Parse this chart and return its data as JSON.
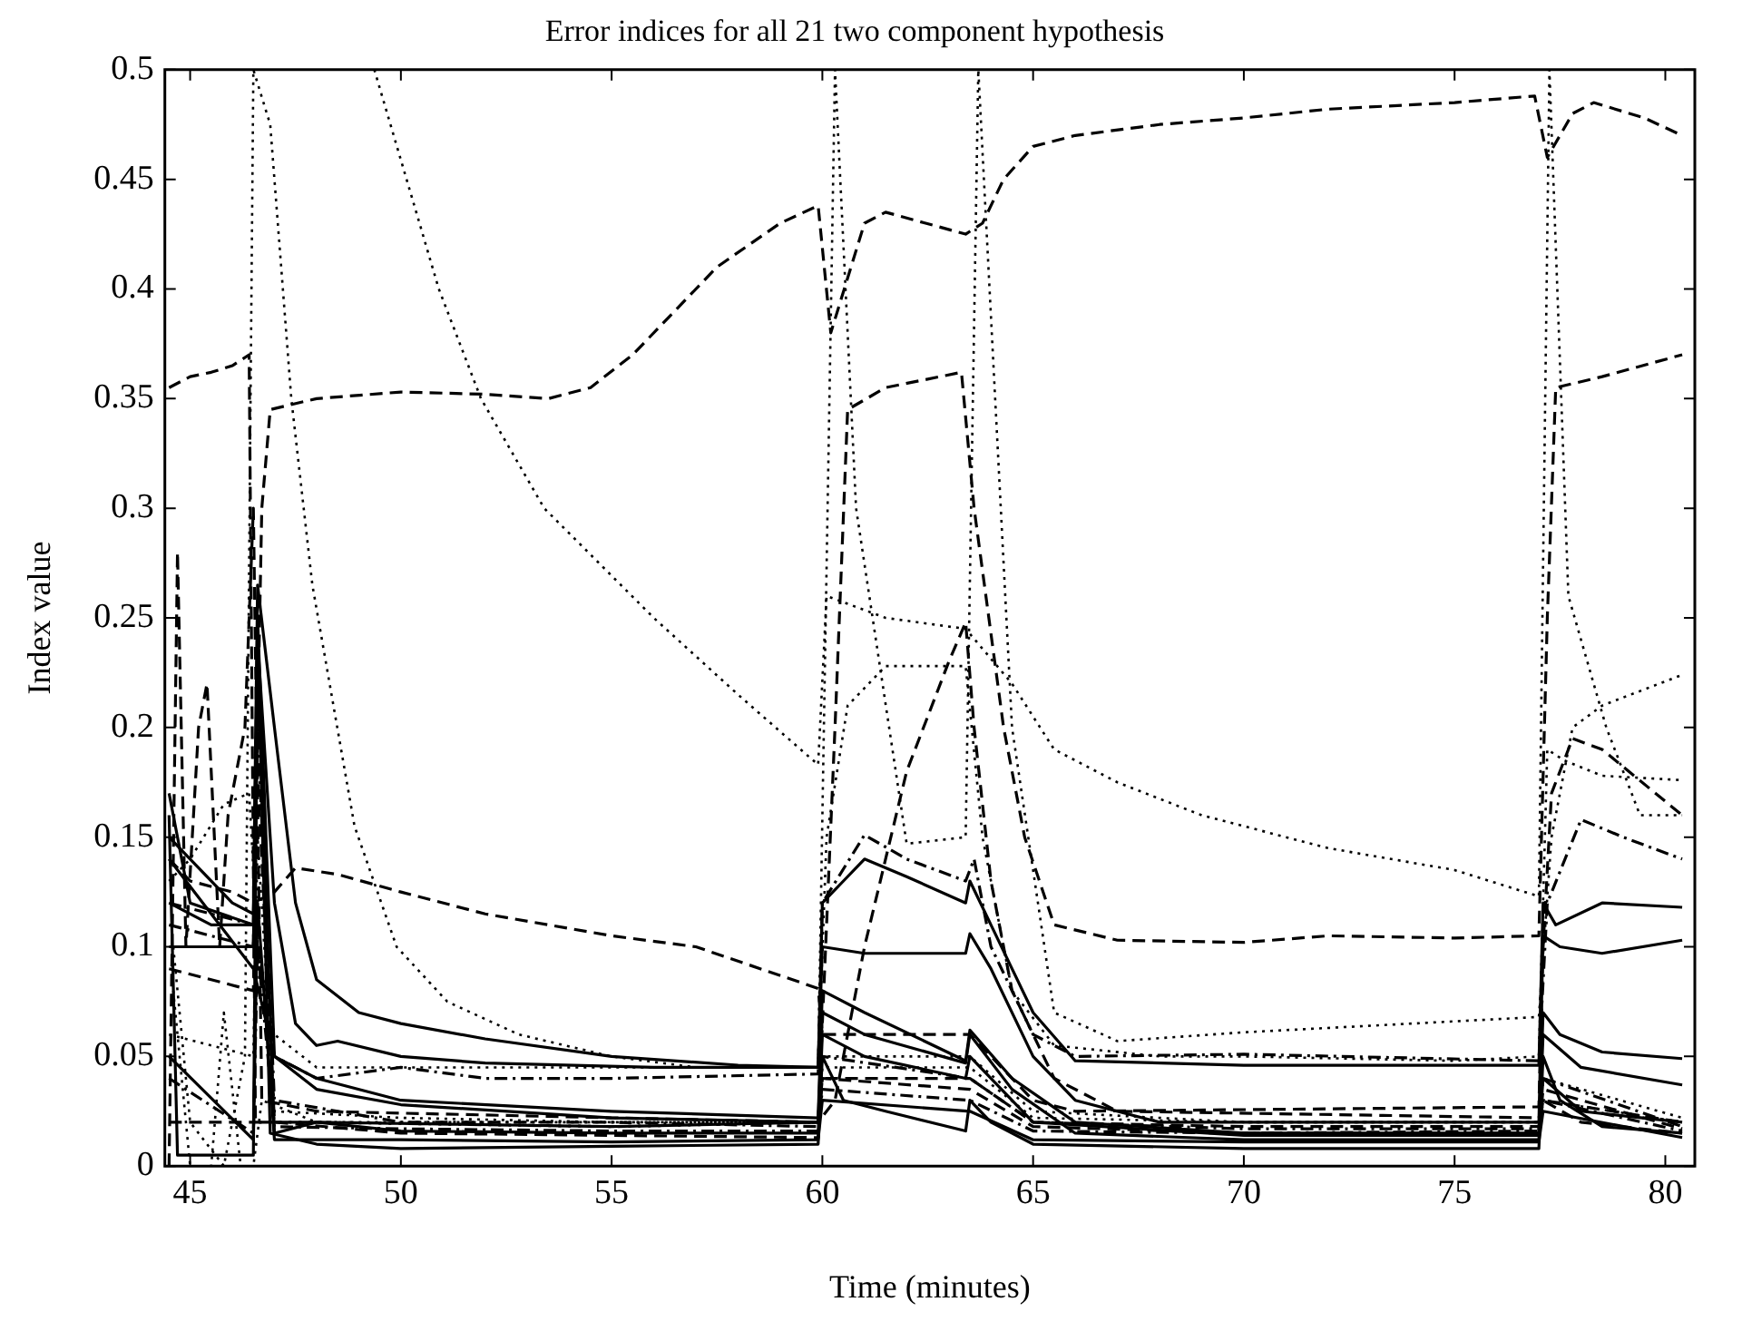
{
  "chart_data": {
    "type": "line",
    "title": "Error indices for all 21 two component hypothesis",
    "xlabel": "Time (minutes)",
    "ylabel": "Index value",
    "xlim": [
      44.4,
      80.7
    ],
    "ylim": [
      0,
      0.5
    ],
    "xticks": [
      45,
      50,
      55,
      60,
      65,
      70,
      75,
      80
    ],
    "yticks": [
      0,
      0.05,
      0.1,
      0.15,
      0.2,
      0.25,
      0.3,
      0.35,
      0.4,
      0.45,
      0.5
    ],
    "grid": false,
    "legend": false,
    "marker": "none",
    "series": [
      {
        "color": "#000000",
        "line_style": "dashed",
        "x": [
          46.5,
          46.7,
          46.9,
          48,
          50,
          52,
          53.5,
          54.5,
          55.5,
          56.5,
          57.5,
          59,
          59.9,
          60.2,
          61,
          61.5,
          63.4,
          63.8,
          64.3,
          65,
          66,
          68,
          70,
          72,
          75,
          76.9,
          77.2,
          77.8,
          78.3,
          79.5,
          80.4
        ],
        "values": [
          0.1,
          0.3,
          0.345,
          0.35,
          0.353,
          0.352,
          0.35,
          0.355,
          0.37,
          0.39,
          0.41,
          0.43,
          0.438,
          0.38,
          0.43,
          0.435,
          0.425,
          0.43,
          0.45,
          0.465,
          0.47,
          0.475,
          0.478,
          0.482,
          0.485,
          0.488,
          0.46,
          0.48,
          0.485,
          0.478,
          0.47
        ]
      },
      {
        "color": "#000000",
        "line_style": "dashed",
        "x": [
          44.5,
          45,
          45.5,
          46,
          46.4,
          46.55,
          48,
          55,
          59.9,
          60.3,
          60.6,
          61.5,
          63.3,
          63.6,
          64.3,
          64.8,
          65.5,
          67,
          70,
          72,
          75,
          77,
          77.2,
          77.4,
          78.5,
          80.4
        ],
        "values": [
          0.355,
          0.36,
          0.362,
          0.365,
          0.37,
          0.02,
          0.02,
          0.018,
          0.02,
          0.2,
          0.345,
          0.355,
          0.362,
          0.3,
          0.2,
          0.15,
          0.11,
          0.103,
          0.102,
          0.105,
          0.104,
          0.105,
          0.25,
          0.355,
          0.36,
          0.37
        ]
      },
      {
        "color": "#000000",
        "line_style": "dotted",
        "x": [
          49.37,
          50.9,
          51.9,
          53.4,
          56,
          58,
          59.9,
          60.1,
          61.5,
          63.4,
          64.5,
          65.5,
          67,
          69,
          70,
          72,
          75,
          77,
          77.25,
          77.7,
          78.6,
          79.4,
          80.4
        ],
        "values": [
          0.5,
          0.4,
          0.35,
          0.3,
          0.25,
          0.215,
          0.183,
          0.26,
          0.25,
          0.245,
          0.22,
          0.19,
          0.175,
          0.16,
          0.155,
          0.145,
          0.135,
          0.123,
          0.5,
          0.26,
          0.2,
          0.16,
          0.16
        ]
      },
      {
        "color": "#000000",
        "line_style": "dotted",
        "x": [
          44.6,
          45,
          45.8,
          46.3,
          46.5,
          46.9,
          47.4,
          47.9,
          48.9,
          49.9,
          51.1,
          52.8,
          55,
          57,
          59.9,
          60.3,
          60.8,
          62,
          63.4,
          63.7,
          64.5,
          65.5,
          67,
          70,
          75,
          77,
          77.3,
          77.8,
          78.5,
          80.4
        ],
        "values": [
          0.1,
          0.02,
          0,
          0.05,
          0.5,
          0.475,
          0.35,
          0.265,
          0.155,
          0.1,
          0.075,
          0.06,
          0.05,
          0.045,
          0.045,
          0.5,
          0.3,
          0.147,
          0.15,
          0.5,
          0.2,
          0.07,
          0.057,
          0.061,
          0.066,
          0.068,
          0.15,
          0.2,
          0.21,
          0.224
        ]
      },
      {
        "color": "#000000",
        "line_style": "dotted",
        "x": [
          44.5,
          45,
          45.8,
          46.4,
          46.6,
          47,
          48,
          50,
          55,
          59.9,
          60.1,
          60.6,
          61.5,
          63.4,
          63.8,
          64.5,
          65.5,
          68,
          70,
          75,
          77,
          77.2,
          77.6,
          78.5,
          80.4
        ],
        "values": [
          0.13,
          0.14,
          0.165,
          0.17,
          0.1,
          0.06,
          0.045,
          0.045,
          0.045,
          0.045,
          0.15,
          0.21,
          0.228,
          0.228,
          0.15,
          0.08,
          0.055,
          0.05,
          0.05,
          0.048,
          0.05,
          0.19,
          0.185,
          0.178,
          0.176
        ]
      },
      {
        "color": "#000000",
        "line_style": "solid",
        "x": [
          44.5,
          45,
          46,
          46.5,
          46.6,
          47,
          47.5,
          48,
          49,
          50,
          52,
          55,
          58,
          59.9,
          60,
          60.5,
          61,
          62,
          63.4,
          63.5,
          64,
          65,
          66,
          70,
          77,
          77.1,
          77.4,
          78.5,
          80.4
        ],
        "values": [
          0.15,
          0.14,
          0.12,
          0.115,
          0.265,
          0.2,
          0.12,
          0.085,
          0.07,
          0.065,
          0.058,
          0.05,
          0.046,
          0.045,
          0.12,
          0.13,
          0.14,
          0.132,
          0.12,
          0.13,
          0.11,
          0.07,
          0.048,
          0.046,
          0.046,
          0.12,
          0.11,
          0.12,
          0.118
        ]
      },
      {
        "color": "#000000",
        "line_style": "solid",
        "x": [
          44.5,
          45.5,
          46.5,
          46.6,
          47,
          47.5,
          48,
          48.5,
          50,
          52,
          56,
          59.9,
          60,
          61,
          63.4,
          63.5,
          64,
          65,
          66,
          68,
          77,
          77.1,
          77.5,
          78.5,
          80.4
        ],
        "values": [
          0.12,
          0.11,
          0.11,
          0.24,
          0.12,
          0.065,
          0.055,
          0.057,
          0.05,
          0.047,
          0.045,
          0.045,
          0.1,
          0.097,
          0.097,
          0.106,
          0.09,
          0.05,
          0.03,
          0.02,
          0.02,
          0.105,
          0.1,
          0.097,
          0.103
        ]
      },
      {
        "color": "#000000",
        "line_style": "solid",
        "x": [
          44.5,
          46.5,
          47,
          48,
          50,
          55,
          59.9,
          60,
          61,
          63.4,
          63.5,
          64.5,
          66,
          70,
          77,
          77.1,
          77.5,
          78.5,
          80.4
        ],
        "values": [
          0.14,
          0.09,
          0.05,
          0.04,
          0.03,
          0.025,
          0.022,
          0.08,
          0.07,
          0.048,
          0.062,
          0.04,
          0.02,
          0.015,
          0.015,
          0.07,
          0.06,
          0.052,
          0.049
        ]
      },
      {
        "color": "#000000",
        "line_style": "solid",
        "x": [
          44.5,
          45,
          46.5,
          46.6,
          47,
          48,
          50,
          55,
          59.9,
          60,
          61,
          63.4,
          63.5,
          64.5,
          66,
          70,
          77,
          77.1,
          78,
          80.4
        ],
        "values": [
          0.17,
          0.12,
          0.11,
          0.25,
          0.05,
          0.035,
          0.028,
          0.022,
          0.02,
          0.07,
          0.06,
          0.047,
          0.06,
          0.035,
          0.015,
          0.012,
          0.012,
          0.06,
          0.045,
          0.037
        ]
      },
      {
        "color": "#000000",
        "line_style": "solid",
        "x": [
          44.5,
          44.7,
          46.5,
          46.6,
          46.9,
          48,
          50,
          55,
          59.9,
          60,
          60.5,
          61.5,
          63.4,
          63.5,
          64,
          65,
          70,
          77,
          77.1,
          77.5,
          78.5,
          80.4
        ],
        "values": [
          0.16,
          0.005,
          0.005,
          0.24,
          0.015,
          0.01,
          0.008,
          0.009,
          0.01,
          0.05,
          0.03,
          0.025,
          0.016,
          0.03,
          0.02,
          0.01,
          0.008,
          0.008,
          0.05,
          0.03,
          0.018,
          0.015
        ]
      },
      {
        "color": "#000000",
        "line_style": "solid",
        "x": [
          44.5,
          46.5,
          46.6,
          47,
          48,
          50,
          55,
          59.9,
          60,
          61,
          63.4,
          63.5,
          65,
          70,
          77,
          77.1,
          78,
          80.4
        ],
        "values": [
          0.1,
          0.1,
          0.23,
          0.015,
          0.02,
          0.016,
          0.015,
          0.015,
          0.06,
          0.05,
          0.04,
          0.05,
          0.02,
          0.014,
          0.014,
          0.04,
          0.025,
          0.02
        ]
      },
      {
        "color": "#000000",
        "line_style": "dashdot",
        "x": [
          44.5,
          46.5,
          46.6,
          47,
          48,
          50,
          52,
          55,
          59.9,
          60,
          61,
          62,
          63.4,
          63.6,
          64,
          65,
          66,
          70,
          77,
          77.2,
          78,
          79,
          80.4
        ],
        "values": [
          0.12,
          0.11,
          0.1,
          0.05,
          0.04,
          0.045,
          0.04,
          0.04,
          0.042,
          0.12,
          0.151,
          0.14,
          0.13,
          0.14,
          0.1,
          0.06,
          0.05,
          0.051,
          0.048,
          0.12,
          0.158,
          0.15,
          0.14
        ]
      },
      {
        "color": "#000000",
        "line_style": "dashed",
        "x": [
          44.5,
          45,
          46,
          46.5,
          47,
          47.5,
          48.5,
          50,
          52,
          55,
          57,
          59.9,
          60,
          63.5,
          64,
          65,
          66,
          77,
          77.1,
          77.3,
          77.8,
          78.5,
          80.4
        ],
        "values": [
          0.14,
          0.13,
          0.125,
          0.12,
          0.125,
          0.136,
          0.133,
          0.125,
          0.115,
          0.105,
          0.1,
          0.081,
          0.06,
          0.06,
          0.05,
          0.03,
          0.025,
          0.027,
          0.1,
          0.17,
          0.195,
          0.19,
          0.16
        ]
      },
      {
        "color": "#000000",
        "line_style": "dashed",
        "x": [
          44.5,
          46.5,
          46.7,
          48,
          55,
          59.9,
          60.3,
          61,
          62,
          63,
          63.4,
          63.6,
          64,
          64.5,
          65.5,
          67,
          77,
          77.1,
          78,
          80.4
        ],
        "values": [
          0.02,
          0.02,
          0.02,
          0.02,
          0.018,
          0.02,
          0.03,
          0.1,
          0.18,
          0.23,
          0.248,
          0.2,
          0.13,
          0.08,
          0.04,
          0.025,
          0.022,
          0.03,
          0.02,
          0.015
        ]
      },
      {
        "color": "#000000",
        "line_style": "dashed",
        "x": [
          44.5,
          44.7,
          44.9,
          45.2,
          45.4,
          45.7,
          45.9,
          46.3,
          46.5,
          46.7,
          48,
          55,
          59.9,
          60,
          63.5,
          65,
          70,
          77,
          77.1,
          80.4
        ],
        "values": [
          0,
          0.28,
          0.1,
          0.2,
          0.22,
          0.1,
          0.16,
          0.2,
          0.3,
          0.03,
          0.025,
          0.022,
          0.02,
          0.04,
          0.04,
          0.02,
          0.018,
          0.018,
          0.03,
          0.02
        ]
      },
      {
        "color": "#000000",
        "line_style": "dotted",
        "x": [
          44.6,
          45,
          45.5,
          45.8,
          46.2,
          46.5,
          46.7,
          48,
          55,
          59.9,
          60,
          63.5,
          65,
          70,
          77,
          77.1,
          80.4
        ],
        "values": [
          0.08,
          0,
          0,
          0.07,
          0,
          0,
          0.03,
          0.02,
          0.02,
          0.02,
          0.05,
          0.05,
          0.025,
          0.02,
          0.02,
          0.03,
          0.02
        ]
      },
      {
        "color": "#000000",
        "line_style": "dashdot",
        "x": [
          44.5,
          46.5,
          46.6,
          47,
          50,
          55,
          59.9,
          60,
          63.5,
          65,
          70,
          77,
          77.1,
          80.4
        ],
        "values": [
          0.11,
          0.1,
          0.2,
          0.03,
          0.02,
          0.02,
          0.018,
          0.05,
          0.04,
          0.02,
          0.017,
          0.017,
          0.04,
          0.018
        ]
      },
      {
        "color": "#000000",
        "line_style": "dashed",
        "x": [
          44.5,
          46.5,
          46.6,
          47,
          50,
          55,
          59.9,
          60,
          63.5,
          65,
          70,
          77,
          77.1,
          80.4
        ],
        "values": [
          0.09,
          0.08,
          0.18,
          0.02,
          0.015,
          0.014,
          0.013,
          0.04,
          0.035,
          0.018,
          0.015,
          0.015,
          0.035,
          0.017
        ]
      },
      {
        "color": "#000000",
        "line_style": "dotted",
        "x": [
          44.5,
          46.5,
          46.6,
          47,
          50,
          55,
          59.9,
          60,
          63.5,
          65,
          70,
          77,
          77.1,
          80.4
        ],
        "values": [
          0.06,
          0.05,
          0.15,
          0.025,
          0.022,
          0.02,
          0.02,
          0.045,
          0.045,
          0.022,
          0.02,
          0.02,
          0.04,
          0.022
        ]
      },
      {
        "color": "#000000",
        "line_style": "solid",
        "x": [
          44.5,
          46.5,
          46.6,
          47,
          50,
          55,
          59.9,
          60,
          63.5,
          65,
          70,
          77,
          77.1,
          80.4
        ],
        "values": [
          0.05,
          0.012,
          0.12,
          0.012,
          0.012,
          0.011,
          0.012,
          0.03,
          0.025,
          0.012,
          0.011,
          0.011,
          0.025,
          0.013
        ]
      },
      {
        "color": "#000000",
        "line_style": "dashdot",
        "x": [
          44.5,
          46.5,
          46.6,
          47,
          50,
          55,
          59.9,
          60,
          63.5,
          65,
          70,
          77,
          77.1,
          80.4
        ],
        "values": [
          0.04,
          0.015,
          0.1,
          0.018,
          0.017,
          0.016,
          0.016,
          0.035,
          0.03,
          0.016,
          0.015,
          0.016,
          0.03,
          0.016
        ]
      }
    ]
  }
}
